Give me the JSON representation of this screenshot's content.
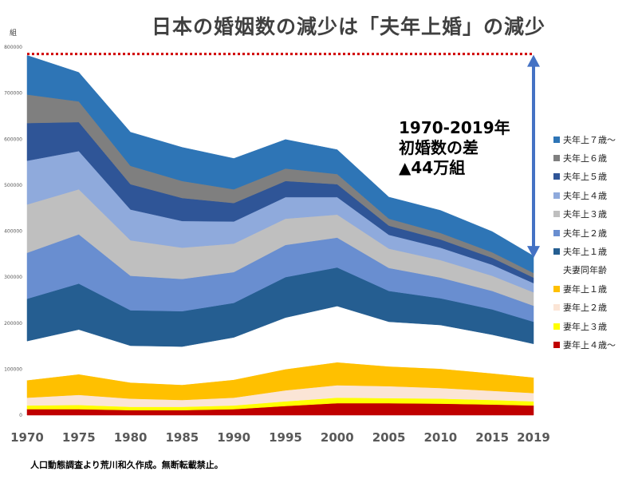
{
  "title": "日本の婚姻数の減少は「夫年上婚」の減少",
  "unit_label": "組",
  "source": "人口動態調査より荒川和久作成。無断転載禁止。",
  "annotation": {
    "line1": "1970-2019年",
    "line2": "初婚数の差",
    "line3": "▲44万組"
  },
  "chart_data": {
    "type": "area",
    "stacked": true,
    "x": [
      1970,
      1975,
      1980,
      1985,
      1990,
      1995,
      2000,
      2005,
      2010,
      2015,
      2019
    ],
    "ylim": [
      0,
      800000
    ],
    "yticks": [
      0,
      100000,
      200000,
      300000,
      400000,
      500000,
      600000,
      700000,
      800000
    ],
    "ytick_labels": [
      "0",
      "100000",
      "200000",
      "300000",
      "400000",
      "500000",
      "600000",
      "700000",
      "800000"
    ],
    "xtick_labels": [
      "1970",
      "1975",
      "1980",
      "1985",
      "1990",
      "1995",
      "2000",
      "2005",
      "2010",
      "2015",
      "2019"
    ],
    "reference_line": {
      "value": 785000,
      "color": "#d00000",
      "style": "dotted"
    },
    "difference_arrow": {
      "x_from": 2019,
      "from": 340000,
      "to": 785000,
      "color": "#4472c4"
    },
    "series": [
      {
        "name": "妻年上４歳～",
        "color": "#c00000",
        "values": [
          13000,
          13000,
          11000,
          11000,
          13000,
          20000,
          26000,
          26000,
          25000,
          23000,
          21000
        ]
      },
      {
        "name": "妻年上３歳",
        "color": "#ffff00",
        "values": [
          8000,
          9000,
          7000,
          7000,
          8000,
          10000,
          12000,
          11000,
          11000,
          10000,
          9000
        ]
      },
      {
        "name": "妻年上２歳",
        "color": "#fbe5d6",
        "values": [
          17000,
          22000,
          18000,
          15000,
          17000,
          24000,
          27000,
          26000,
          23000,
          20000,
          18000
        ]
      },
      {
        "name": "妻年上１歳",
        "color": "#ffc000",
        "values": [
          38000,
          45000,
          35000,
          33000,
          39000,
          46000,
          50000,
          43000,
          42000,
          38000,
          34000
        ]
      },
      {
        "name": "夫妻同年齢",
        "color": "#ffffff",
        "values": [
          85000,
          97000,
          80000,
          83000,
          92000,
          112000,
          122000,
          97000,
          95000,
          84000,
          73000
        ]
      },
      {
        "name": "夫年上１歳",
        "color": "#255e91",
        "values": [
          92000,
          100000,
          77000,
          77000,
          75000,
          88000,
          84000,
          67000,
          58000,
          55000,
          48000
        ]
      },
      {
        "name": "夫年上２歳",
        "color": "#698ed0",
        "values": [
          100000,
          107000,
          75000,
          70000,
          67000,
          70000,
          65000,
          50000,
          45000,
          40000,
          35000
        ]
      },
      {
        "name": "夫年上３歳",
        "color": "#bfbfbf",
        "values": [
          105000,
          98000,
          77000,
          68000,
          62000,
          57000,
          50000,
          42000,
          38000,
          33000,
          29000
        ]
      },
      {
        "name": "夫年上４歳",
        "color": "#8faadc",
        "values": [
          95000,
          83000,
          67000,
          58000,
          48000,
          47000,
          38000,
          30000,
          27000,
          24000,
          20000
        ]
      },
      {
        "name": "夫年上５歳",
        "color": "#2f5597",
        "values": [
          82000,
          63000,
          55000,
          50000,
          40000,
          35000,
          28000,
          20000,
          18000,
          15000,
          12000
        ]
      },
      {
        "name": "夫年上６歳",
        "color": "#7f7f7f",
        "values": [
          62000,
          45000,
          40000,
          37000,
          30000,
          27000,
          22000,
          15000,
          14000,
          12000,
          10000
        ]
      },
      {
        "name": "夫年上７歳～",
        "color": "#2e75b6",
        "values": [
          85000,
          63000,
          73000,
          73000,
          67000,
          63000,
          53000,
          47000,
          49000,
          45000,
          37000
        ]
      }
    ],
    "legend_order": [
      "夫年上７歳～",
      "夫年上６歳",
      "夫年上５歳",
      "夫年上４歳",
      "夫年上３歳",
      "夫年上２歳",
      "夫年上１歳",
      "夫妻同年齢",
      "妻年上１歳",
      "妻年上２歳",
      "妻年上３歳",
      "妻年上４歳～"
    ],
    "legend_position": "right"
  }
}
